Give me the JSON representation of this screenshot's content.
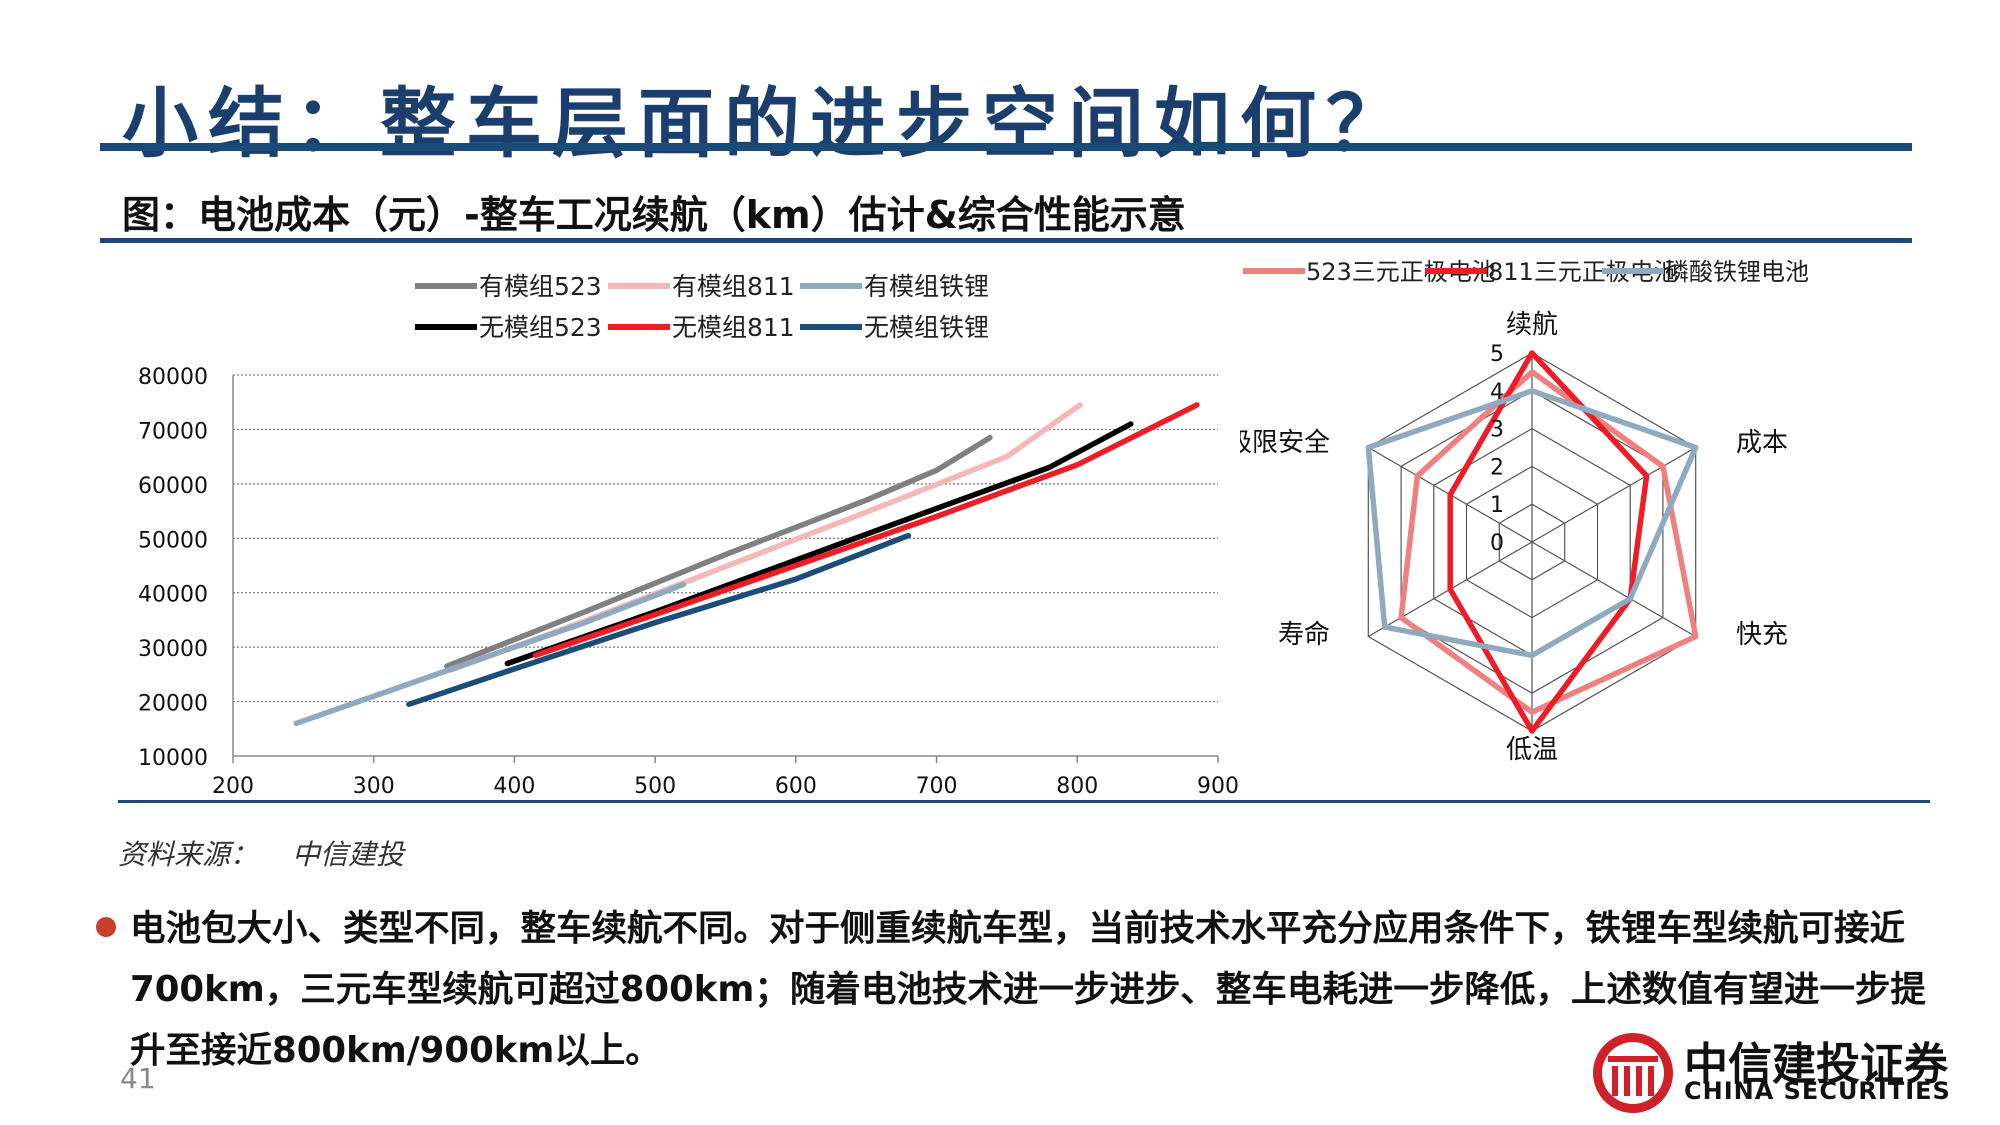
{
  "slide": {
    "title": "小结：整车层面的进步空间如何？",
    "figure_caption": "图：电池成本（元）-整车工况续航（km）估计&综合性能示意",
    "source_label": "资料来源：",
    "source_value": "中信建投",
    "body": "电池包大小、类型不同，整车续航不同。对于侧重续航车型，当前技术水平充分应用条件下，铁锂车型续航可接近700km，三元车型续航可超过800km；随着电池技术进一步进步、整车电耗进一步降低，上述数值有望进一步提升至接近800km/900km以上。",
    "page_number": "41",
    "logo_cn": "中信建投证券",
    "logo_en": "CHINA SECURITIES",
    "colors": {
      "title": "#1a3f6e",
      "rule": "#1a4b78",
      "bullet": "#c8402a",
      "logo": "#d0202a"
    }
  },
  "chart_data": [
    {
      "type": "line",
      "title": "",
      "xlabel": "",
      "ylabel": "",
      "xlim": [
        200,
        900
      ],
      "ylim": [
        10000,
        80000
      ],
      "xticks": [
        200,
        300,
        400,
        500,
        600,
        700,
        800,
        900
      ],
      "yticks": [
        10000,
        20000,
        30000,
        40000,
        50000,
        60000,
        70000,
        80000
      ],
      "grid": "horizontal dotted",
      "legend_position": "top",
      "series": [
        {
          "name": "有模组523",
          "color": "#808080",
          "points": [
            [
              352,
              26500
            ],
            [
              450,
              36500
            ],
            [
              550,
              47000
            ],
            [
              650,
              57000
            ],
            [
              700,
              62500
            ],
            [
              738,
              68500
            ]
          ]
        },
        {
          "name": "有模组811",
          "color": "#f4b8b8",
          "points": [
            [
              355,
              25800
            ],
            [
              450,
              34800
            ],
            [
              550,
              44800
            ],
            [
              650,
              54800
            ],
            [
              750,
              65000
            ],
            [
              802,
              74500
            ]
          ]
        },
        {
          "name": "有模组铁锂",
          "color": "#8faabf",
          "points": [
            [
              245,
              16000
            ],
            [
              350,
              25500
            ],
            [
              450,
              34500
            ],
            [
              520,
              41500
            ]
          ]
        },
        {
          "name": "无模组523",
          "color": "#000000",
          "points": [
            [
              395,
              27000
            ],
            [
              500,
              36500
            ],
            [
              600,
              46000
            ],
            [
              700,
              55500
            ],
            [
              780,
              63000
            ],
            [
              838,
              71000
            ]
          ]
        },
        {
          "name": "无模组811",
          "color": "#ee1c25",
          "points": [
            [
              415,
              28500
            ],
            [
              500,
              36000
            ],
            [
              600,
              45000
            ],
            [
              700,
              54000
            ],
            [
              800,
              63500
            ],
            [
              885,
              74500
            ]
          ]
        },
        {
          "name": "无模组铁锂",
          "color": "#1a4d7a",
          "points": [
            [
              325,
              19500
            ],
            [
              400,
              26000
            ],
            [
              500,
              34500
            ],
            [
              600,
              42500
            ],
            [
              680,
              50500
            ]
          ]
        }
      ]
    },
    {
      "type": "radar",
      "title": "",
      "axes": [
        "续航",
        "成本",
        "快充",
        "低温",
        "寿命",
        "极限安全"
      ],
      "range": [
        0,
        5
      ],
      "ticks": [
        0,
        1,
        2,
        3,
        4,
        5
      ],
      "legend_position": "top",
      "series": [
        {
          "name": "523三元正极电池",
          "color": "#f08080",
          "values": [
            4.5,
            4,
            5,
            4.5,
            4,
            3.5
          ]
        },
        {
          "name": "811三元正极电池",
          "color": "#ee1c25",
          "values": [
            5,
            3.5,
            3,
            5,
            2.5,
            2.5
          ]
        },
        {
          "name": "磷酸铁锂电池",
          "color": "#8faabf",
          "values": [
            4,
            5,
            3,
            3,
            4.5,
            5
          ]
        }
      ]
    }
  ]
}
